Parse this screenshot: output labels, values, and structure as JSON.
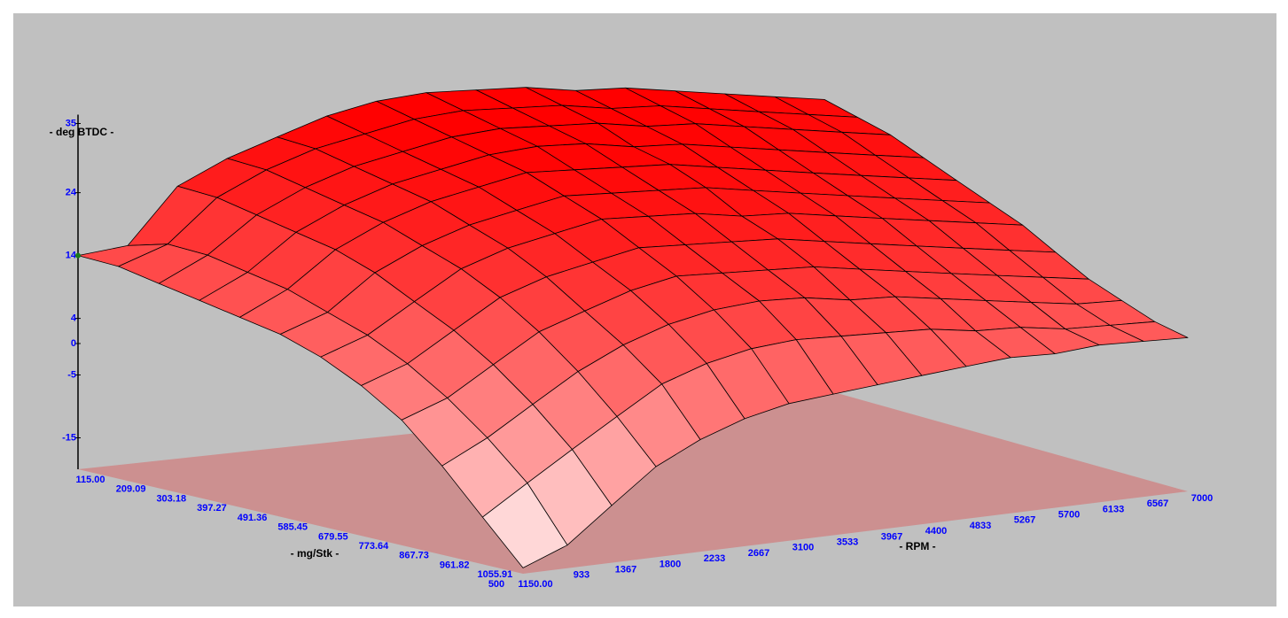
{
  "chart_data": {
    "type": "surface",
    "z_label": "- deg BTDC -",
    "y_label": "- mg/Stk -",
    "x_label": "- RPM -",
    "color": "#ff0000",
    "floor_color": "#cc9090",
    "x": [
      500,
      933,
      1367,
      1800,
      2233,
      2667,
      3100,
      3533,
      3967,
      4400,
      4833,
      5267,
      5700,
      6133,
      6567,
      7000
    ],
    "xlim": [
      500,
      7000
    ],
    "y": [
      {
        "value": 115,
        "label": "115.00"
      },
      {
        "value": 209.09,
        "label": "209.09"
      },
      {
        "value": 303.18,
        "label": "303.18"
      },
      {
        "value": 397.27,
        "label": "397.27"
      },
      {
        "value": 491.36,
        "label": "491.36"
      },
      {
        "value": 585.45,
        "label": "585.45"
      },
      {
        "value": 679.55,
        "label": "679.55"
      },
      {
        "value": 773.64,
        "label": "773.64"
      },
      {
        "value": 867.73,
        "label": "867.73"
      },
      {
        "value": 961.82,
        "label": "961.82"
      },
      {
        "value": 1055.91,
        "label": "1055.91"
      },
      {
        "value": 1150,
        "label": "1150.00"
      }
    ],
    "ylim": [
      115,
      1150
    ],
    "zlim": [
      -20,
      35
    ],
    "zticks": [
      35,
      24,
      14,
      4,
      0,
      -5,
      -15
    ],
    "z": [
      [
        14,
        15,
        24,
        28,
        31,
        34,
        36,
        37,
        37,
        37,
        36,
        36,
        35,
        34,
        33,
        32
      ],
      [
        14,
        17,
        24,
        28,
        31,
        33,
        35,
        36,
        36,
        36,
        35,
        35,
        34,
        33,
        32,
        31
      ],
      [
        13,
        17,
        23,
        27,
        30,
        32,
        34,
        35,
        35,
        35,
        34,
        34,
        33,
        32,
        31,
        30
      ],
      [
        12,
        16,
        22,
        26,
        29,
        31,
        33,
        34,
        34,
        33,
        33,
        32,
        31,
        30,
        29,
        28
      ],
      [
        11,
        15,
        21,
        25,
        28,
        30,
        32,
        32,
        32,
        32,
        31,
        30,
        29,
        28,
        27,
        26
      ],
      [
        10,
        13,
        19,
        23,
        26,
        28,
        30,
        30,
        30,
        30,
        29,
        28,
        27,
        26,
        25,
        24
      ],
      [
        8,
        11,
        16,
        21,
        24,
        26,
        28,
        28,
        28,
        27,
        27,
        26,
        25,
        24,
        23,
        22
      ],
      [
        5,
        8,
        13,
        18,
        21,
        23,
        25,
        25,
        25,
        25,
        24,
        23,
        22,
        21,
        20,
        19
      ],
      [
        1,
        4,
        9,
        14,
        17,
        20,
        22,
        22,
        22,
        22,
        21,
        20,
        19,
        18,
        17,
        16
      ],
      [
        -5,
        -1,
        4,
        9,
        13,
        16,
        18,
        19,
        19,
        18,
        18,
        17,
        16,
        15,
        14,
        14
      ],
      [
        -12,
        -7,
        -2,
        3,
        8,
        11,
        13,
        14,
        14,
        14,
        14,
        13,
        13,
        12,
        12,
        12
      ],
      [
        -19,
        -16,
        -10,
        -4,
        0,
        3,
        5,
        6,
        7,
        8,
        9,
        10,
        10,
        11,
        11,
        11
      ]
    ]
  }
}
